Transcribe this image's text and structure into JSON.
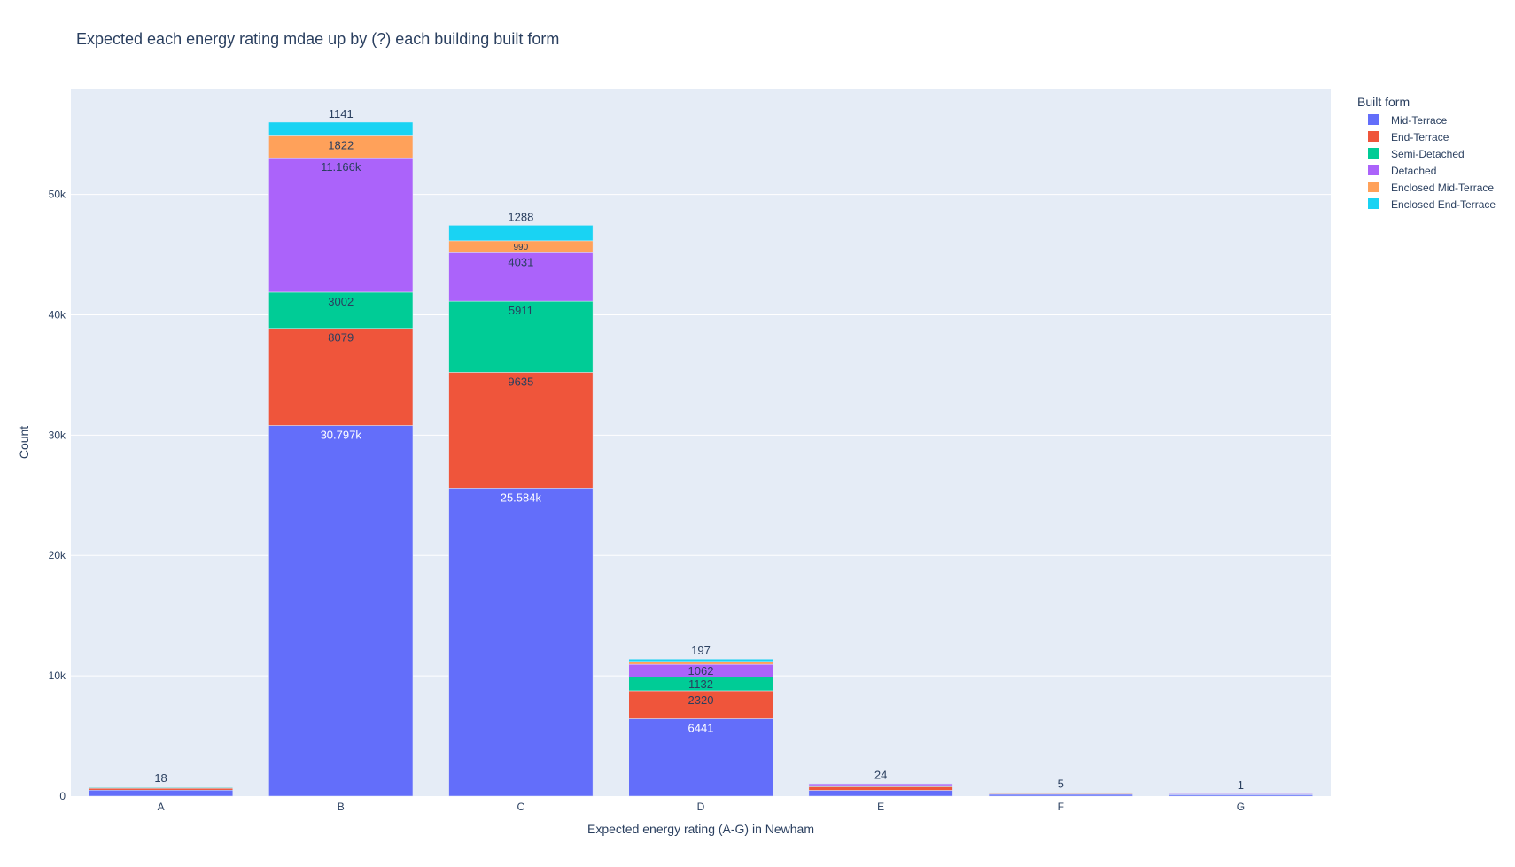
{
  "chart_data": {
    "type": "bar",
    "barmode": "stack",
    "title": "Expected each energy rating mdae up by (?) each building built form",
    "xlabel": "Expected energy rating (A-G) in Newham",
    "ylabel": "Count",
    "ylim": [
      0,
      58800
    ],
    "yticks": [
      0,
      10000,
      20000,
      30000,
      40000,
      50000
    ],
    "ytick_labels": [
      "0",
      "10k",
      "20k",
      "30k",
      "40k",
      "50k"
    ],
    "grid": true,
    "legend": {
      "title": "Built form",
      "position": "top-right"
    },
    "categories": [
      "A",
      "B",
      "C",
      "D",
      "E",
      "F",
      "G"
    ],
    "series": [
      {
        "name": "Mid-Terrace",
        "color": "#636efa",
        "values": [
          500,
          30797,
          25584,
          6441,
          480,
          150,
          120
        ],
        "text": [
          "",
          "30.797k",
          "25.584k",
          "6441",
          "",
          "",
          ""
        ]
      },
      {
        "name": "End-Terrace",
        "color": "#ef553b",
        "values": [
          150,
          8079,
          9635,
          2320,
          300,
          60,
          20
        ],
        "text": [
          "",
          "8079",
          "9635",
          "2320",
          "",
          "",
          ""
        ]
      },
      {
        "name": "Semi-Detached",
        "color": "#00cc96",
        "values": [
          60,
          3002,
          5911,
          1132,
          100,
          20,
          10
        ],
        "text": [
          "",
          "3002",
          "5911",
          "1132",
          "",
          "",
          ""
        ]
      },
      {
        "name": "Detached",
        "color": "#ab63fa",
        "values": [
          40,
          11166,
          4031,
          1062,
          150,
          80,
          70
        ],
        "text": [
          "",
          "11.166k",
          "4031",
          "1062",
          "",
          "",
          ""
        ]
      },
      {
        "name": "Enclosed Mid-Terrace",
        "color": "#ffa15a",
        "values": [
          25,
          1822,
          990,
          240,
          30,
          8,
          3
        ],
        "text": [
          "",
          "1822",
          "990",
          "",
          "",
          "",
          ""
        ]
      },
      {
        "name": "Enclosed End-Terrace",
        "color": "#19d3f3",
        "values": [
          18,
          1141,
          1288,
          197,
          24,
          5,
          1
        ],
        "text": [
          "18",
          "1141",
          "1288",
          "197",
          "24",
          "5",
          "1"
        ]
      }
    ]
  }
}
